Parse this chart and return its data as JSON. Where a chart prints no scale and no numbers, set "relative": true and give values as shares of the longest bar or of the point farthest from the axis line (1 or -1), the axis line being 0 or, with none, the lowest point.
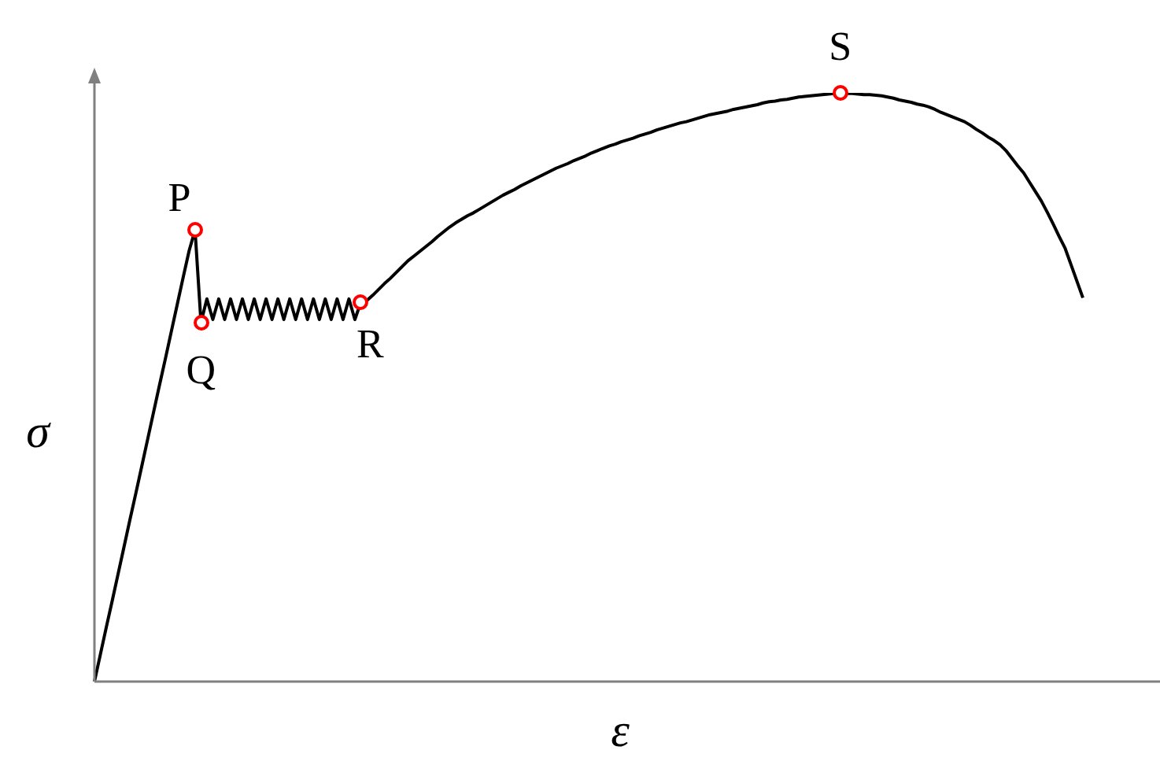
{
  "chart_data": {
    "type": "line",
    "relative": true,
    "xlabel": "ε",
    "ylabel": "σ",
    "legend": false,
    "categories": [
      null,
      null,
      null,
      null,
      null,
      null,
      null,
      null,
      null,
      null,
      null,
      null,
      null,
      null,
      null,
      null,
      null,
      null,
      null,
      null,
      null,
      null,
      null,
      null,
      null,
      null,
      null,
      null,
      null,
      null,
      null,
      null,
      null,
      null,
      null,
      null,
      null,
      null,
      null,
      null,
      null,
      null,
      null,
      null,
      null,
      null,
      null,
      null,
      null,
      null,
      null,
      null,
      null,
      null,
      null,
      null,
      null,
      null,
      null,
      null,
      null,
      null,
      null,
      null,
      null,
      null,
      null,
      null,
      null,
      null,
      null,
      null,
      null,
      null,
      null,
      null,
      null,
      null,
      null,
      null,
      null,
      null,
      null,
      null,
      null,
      null,
      null,
      null,
      null,
      null,
      null,
      null,
      null,
      null,
      null,
      null,
      null,
      null,
      null,
      null,
      null,
      null,
      null,
      null,
      null,
      null,
      null,
      null,
      null,
      null,
      null,
      null,
      null,
      null,
      null,
      null,
      null,
      null,
      null,
      null,
      null,
      null,
      null,
      null,
      null,
      null,
      null,
      null,
      null,
      null,
      null,
      null,
      null,
      null,
      null,
      null,
      null,
      null,
      null,
      null,
      null,
      null,
      null,
      null,
      null,
      null,
      null,
      null,
      null,
      null,
      null,
      null,
      null,
      null,
      null,
      null,
      null,
      null,
      null,
      null,
      null,
      null,
      null,
      null,
      null,
      null,
      null,
      null
    ],
    "series": [
      {
        "type": "line",
        "color": "#000000",
        "marker": "none",
        "line_style": "solid",
        "values": [
          0,
          0.046,
          0.092,
          0.137,
          0.183,
          0.229,
          0.275,
          0.32,
          0.366,
          0.412,
          0.458,
          0.504,
          0.549,
          0.595,
          0.641,
          0.687,
          0.732,
          0.767,
          0.61,
          0.65,
          0.615,
          0.65,
          0.615,
          0.65,
          0.615,
          0.65,
          0.615,
          0.65,
          0.615,
          0.65,
          0.615,
          0.65,
          0.615,
          0.65,
          0.615,
          0.65,
          0.615,
          0.65,
          0.615,
          0.65,
          0.615,
          0.65,
          0.615,
          0.65,
          0.615,
          0.644,
          0.647,
          0.656,
          0.666,
          0.676,
          0.685,
          0.695,
          0.705,
          0.715,
          0.723,
          0.731,
          0.739,
          0.747,
          0.756,
          0.764,
          0.772,
          0.779,
          0.785,
          0.791,
          0.796,
          0.802,
          0.808,
          0.814,
          0.82,
          0.826,
          0.831,
          0.836,
          0.842,
          0.847,
          0.852,
          0.857,
          0.862,
          0.867,
          0.872,
          0.876,
          0.88,
          0.885,
          0.889,
          0.893,
          0.898,
          0.902,
          0.906,
          0.91,
          0.913,
          0.917,
          0.92,
          0.923,
          0.927,
          0.93,
          0.933,
          0.937,
          0.94,
          0.943,
          0.946,
          0.949,
          0.951,
          0.954,
          0.957,
          0.96,
          0.963,
          0.965,
          0.967,
          0.969,
          0.972,
          0.974,
          0.976,
          0.978,
          0.98,
          0.983,
          0.985,
          0.986,
          0.988,
          0.989,
          0.991,
          0.993,
          0.994,
          0.995,
          0.996,
          0.997,
          0.998,
          0.999,
          1,
          0.999,
          0.999,
          0.998,
          0.997,
          0.997,
          0.996,
          0.995,
          0.993,
          0.991,
          0.988,
          0.986,
          0.984,
          0.981,
          0.979,
          0.976,
          0.972,
          0.967,
          0.963,
          0.959,
          0.955,
          0.951,
          0.945,
          0.938,
          0.932,
          0.925,
          0.919,
          0.912,
          0.902,
          0.889,
          0.876,
          0.864,
          0.848,
          0.832,
          0.816,
          0.797,
          0.777,
          0.756,
          0.736,
          0.708,
          0.68,
          0.652
        ]
      }
    ],
    "annotations": [
      {
        "text": "P",
        "y": 0.767
      },
      {
        "text": "Q",
        "y": 0.61
      },
      {
        "text": "R",
        "y": 0.644
      },
      {
        "text": "S",
        "y": 1
      }
    ]
  }
}
